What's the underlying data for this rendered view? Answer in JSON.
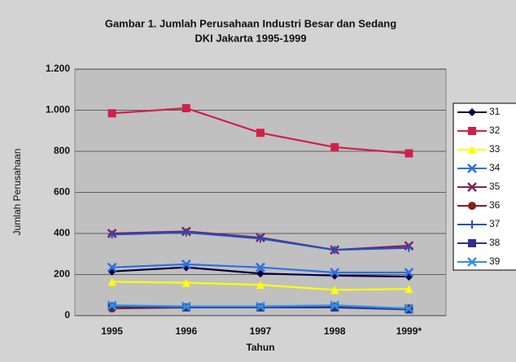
{
  "chart_data": {
    "type": "line",
    "title": [
      "Gambar 1. Jumlah Perusahaan Industri Besar dan Sedang",
      "DKI Jakarta 1995-1999"
    ],
    "x_label": "Tahun",
    "y_label": "Jumlah Perusahaan",
    "categories": [
      "1995",
      "1996",
      "1997",
      "1998",
      "1999*"
    ],
    "ylim": [
      0,
      1200
    ],
    "yticks": [
      0,
      200,
      400,
      600,
      800,
      {
        "value": 1000,
        "label": "1.000"
      },
      {
        "value": 1200,
        "label": "1.200"
      }
    ],
    "grid": true,
    "series": [
      {
        "name": "31",
        "color": "#000040",
        "marker": "diamond",
        "values": [
          215,
          235,
          205,
          195,
          190
        ]
      },
      {
        "name": "32",
        "color": "#d0204a",
        "marker": "square",
        "values": [
          985,
          1010,
          890,
          820,
          790
        ]
      },
      {
        "name": "33",
        "color": "#ffff00",
        "marker": "triangle",
        "values": [
          165,
          160,
          150,
          125,
          130
        ]
      },
      {
        "name": "34",
        "color": "#2f6fe0",
        "marker": "x",
        "values": [
          235,
          250,
          235,
          210,
          210
        ]
      },
      {
        "name": "35",
        "color": "#802060",
        "marker": "x",
        "values": [
          400,
          410,
          380,
          320,
          340
        ]
      },
      {
        "name": "36",
        "color": "#802020",
        "marker": "circle",
        "values": [
          35,
          40,
          40,
          45,
          35
        ]
      },
      {
        "name": "37",
        "color": "#2050c0",
        "marker": "plus",
        "values": [
          395,
          405,
          375,
          320,
          330
        ]
      },
      {
        "name": "38",
        "color": "#303090",
        "marker": "square",
        "values": [
          45,
          40,
          40,
          40,
          30
        ]
      },
      {
        "name": "39",
        "color": "#3090e0",
        "marker": "x",
        "values": [
          50,
          45,
          45,
          50,
          35
        ]
      }
    ]
  }
}
